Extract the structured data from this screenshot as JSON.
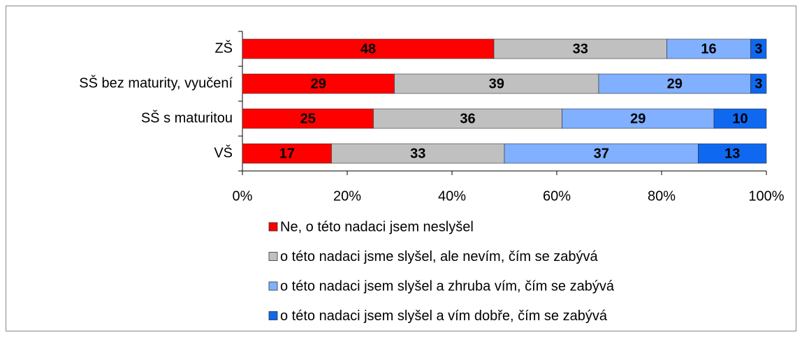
{
  "chart_data": {
    "type": "stacked_bar_horizontal",
    "categories": [
      "ZŠ",
      "SŠ bez maturity, vyučení",
      "SŠ s maturitou",
      "VŠ"
    ],
    "series": [
      {
        "name": "Ne, o této nadaci jsem neslyšel",
        "color": "#ff0000",
        "values": [
          48,
          29,
          25,
          17
        ]
      },
      {
        "name": "o této nadaci jsme slyšel, ale nevím, čím se zabývá",
        "color": "#c0c0c0",
        "values": [
          33,
          39,
          36,
          33
        ]
      },
      {
        "name": "o této nadaci jsem slyšel a zhruba vím, čím se zabývá",
        "color": "#80b0ff",
        "values": [
          16,
          29,
          29,
          37
        ]
      },
      {
        "name": "o této nadaci jsem slyšel a vím dobře, čím se zabývá",
        "color": "#0f68f0",
        "values": [
          3,
          3,
          10,
          13
        ]
      }
    ],
    "xlim": [
      0,
      100
    ],
    "xticks": [
      {
        "value": 0,
        "label": "0%"
      },
      {
        "value": 20,
        "label": "20%"
      },
      {
        "value": 40,
        "label": "40%"
      },
      {
        "value": 60,
        "label": "60%"
      },
      {
        "value": 80,
        "label": "80%"
      },
      {
        "value": 100,
        "label": "100%"
      }
    ],
    "legend": "bottom"
  }
}
